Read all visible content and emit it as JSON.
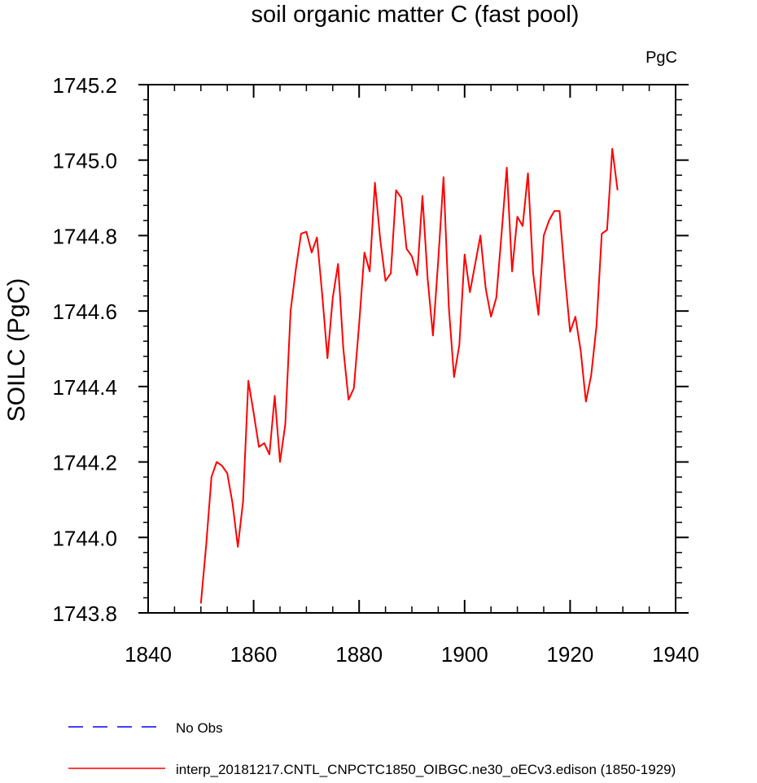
{
  "chart_data": {
    "type": "line",
    "title": "soil organic matter C (fast pool)",
    "units_label": "PgC",
    "xlabel": "",
    "ylabel": "SOILC  (PgC)",
    "xlim": [
      1840,
      1940
    ],
    "ylim": [
      1743.8,
      1745.2
    ],
    "x_ticks": [
      1840,
      1860,
      1880,
      1900,
      1920,
      1940
    ],
    "x_tick_labels": [
      "1840",
      "1860",
      "1880",
      "1900",
      "1920",
      "1940"
    ],
    "y_ticks": [
      1743.8,
      1744.0,
      1744.2,
      1744.4,
      1744.6,
      1744.8,
      1745.0,
      1745.2
    ],
    "y_tick_labels": [
      "1743.8",
      "1744.0",
      "1744.2",
      "1744.4",
      "1744.6",
      "1744.8",
      "1745.0",
      "1745.2"
    ],
    "grid": false,
    "series": [
      {
        "name": "interp_20181217.CNTL_CNPCTC1850_OIBGC.ne30_oECv3.edison (1850-1929)",
        "color": "#ff0000",
        "style": "solid",
        "x": [
          1850,
          1851,
          1852,
          1853,
          1854,
          1855,
          1856,
          1857,
          1858,
          1859,
          1860,
          1861,
          1862,
          1863,
          1864,
          1865,
          1866,
          1867,
          1868,
          1869,
          1870,
          1871,
          1872,
          1873,
          1874,
          1875,
          1876,
          1877,
          1878,
          1879,
          1880,
          1881,
          1882,
          1883,
          1884,
          1885,
          1886,
          1887,
          1888,
          1889,
          1890,
          1891,
          1892,
          1893,
          1894,
          1895,
          1896,
          1897,
          1898,
          1899,
          1900,
          1901,
          1902,
          1903,
          1904,
          1905,
          1906,
          1907,
          1908,
          1909,
          1910,
          1911,
          1912,
          1913,
          1914,
          1915,
          1916,
          1917,
          1918,
          1919,
          1920,
          1921,
          1922,
          1923,
          1924,
          1925,
          1926,
          1927,
          1928,
          1929
        ],
        "values": [
          1743.825,
          1743.98,
          1744.16,
          1744.2,
          1744.19,
          1744.17,
          1744.09,
          1743.975,
          1744.095,
          1744.415,
          1744.33,
          1744.24,
          1744.25,
          1744.22,
          1744.375,
          1744.2,
          1744.3,
          1744.6,
          1744.71,
          1744.805,
          1744.81,
          1744.755,
          1744.795,
          1744.645,
          1744.475,
          1744.635,
          1744.725,
          1744.5,
          1744.365,
          1744.395,
          1744.565,
          1744.755,
          1744.705,
          1744.94,
          1744.79,
          1744.68,
          1744.7,
          1744.92,
          1744.9,
          1744.765,
          1744.745,
          1744.695,
          1744.905,
          1744.685,
          1744.535,
          1744.735,
          1744.955,
          1744.61,
          1744.425,
          1744.51,
          1744.75,
          1744.65,
          1744.725,
          1744.8,
          1744.66,
          1744.585,
          1744.635,
          1744.805,
          1744.98,
          1744.705,
          1744.85,
          1744.825,
          1744.965,
          1744.7,
          1744.59,
          1744.8,
          1744.84,
          1744.865,
          1744.865,
          1744.695,
          1744.545,
          1744.585,
          1744.495,
          1744.36,
          1744.43,
          1744.56,
          1744.805,
          1744.815,
          1745.03,
          1744.92
        ]
      }
    ],
    "legend": [
      {
        "label": "No Obs",
        "color": "#0000ff",
        "style": "dashed"
      },
      {
        "label": "interp_20181217.CNTL_CNPCTC1850_OIBGC.ne30_oECv3.edison (1850-1929)",
        "color": "#ff0000",
        "style": "solid"
      }
    ],
    "legend_position": "bottom"
  }
}
